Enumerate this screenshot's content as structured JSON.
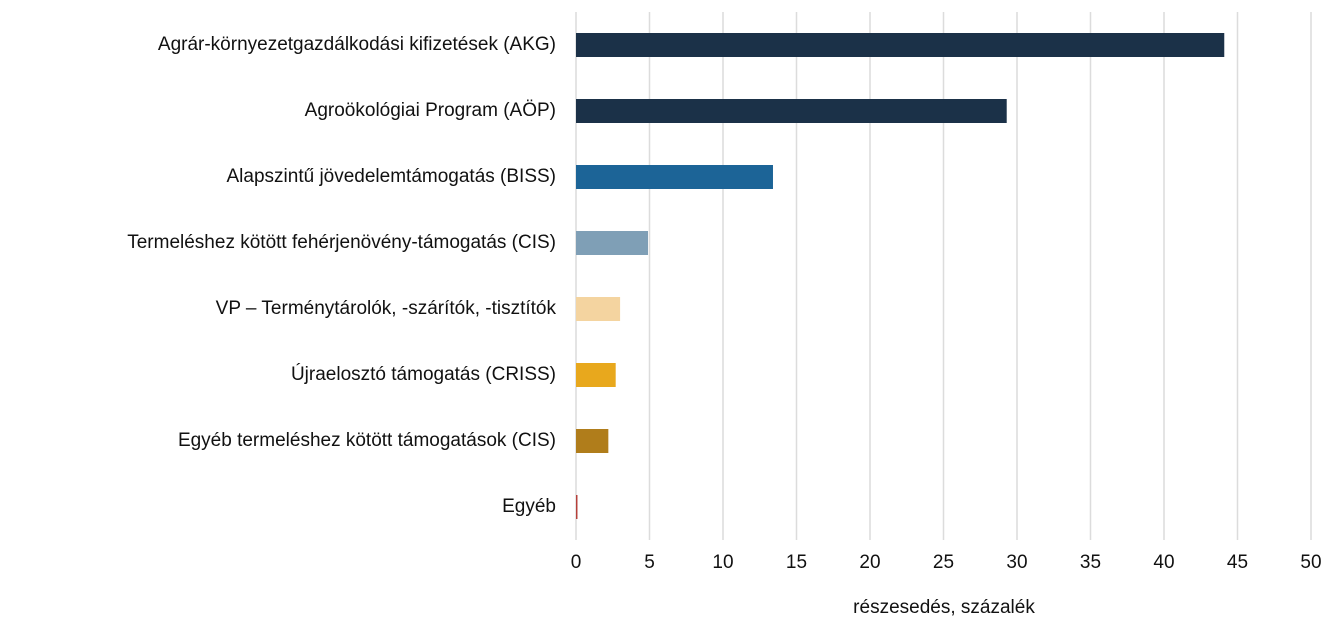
{
  "chart_data": {
    "type": "bar",
    "orientation": "horizontal",
    "x_label": "részesedés, százalék",
    "categories": [
      "Agrár-környezetgazdálkodási kifizetések (AKG)",
      "Agroökológiai Program (AÖP)",
      "Alapszintű jövedelemtámogatás (BISS)",
      "Termeléshez kötött fehérjenövény-támogatás (CIS)",
      "VP – Terménytárolók, -szárítók, -tisztítók",
      "Újraelosztó támogatás (CRISS)",
      "Egyéb termeléshez kötött támogatások (CIS)",
      "Egyéb"
    ],
    "values": [
      44.1,
      29.3,
      13.4,
      4.9,
      3.0,
      2.7,
      2.2,
      0.1
    ],
    "colors": [
      "#1b3148",
      "#1b3148",
      "#1c6497",
      "#7f9fb6",
      "#f4d4a0",
      "#e8a81d",
      "#b07d1b",
      "#b5403a"
    ],
    "xlim": [
      0,
      50
    ],
    "xticks": [
      0,
      5,
      10,
      15,
      20,
      25,
      30,
      35,
      40,
      45,
      50
    ],
    "grid": true
  }
}
